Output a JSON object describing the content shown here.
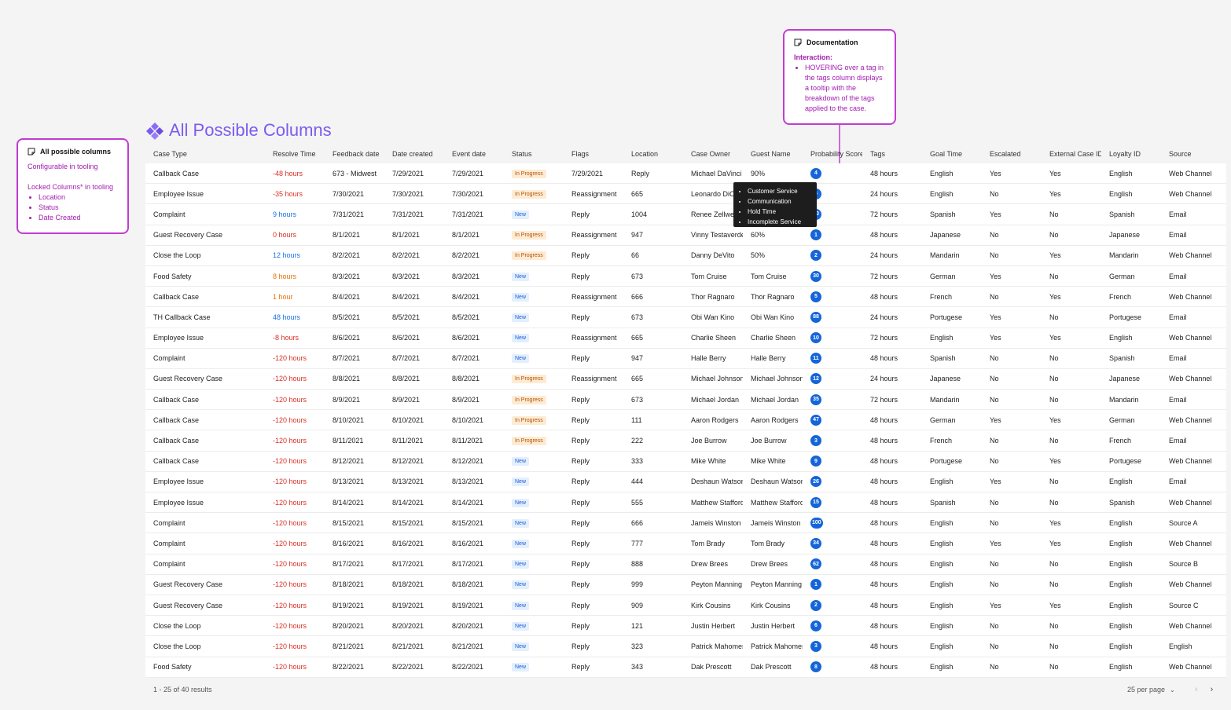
{
  "note_left": {
    "title": "All possible columns",
    "line1": "Configurable in tooling",
    "line2": "Locked Columns* in tooling",
    "items": [
      "Location",
      "Status",
      "Date Created"
    ]
  },
  "note_right": {
    "title": "Documentation",
    "label": "Interaction:",
    "text": "HOVERING over a tag in the tags column displays a tooltip with the breakdown of the tags applied to the case."
  },
  "page_title": "All Possible Columns",
  "columns": [
    "Case Type",
    "Resolve Time",
    "Feedback date",
    "Date created",
    "Event date",
    "Status",
    "Flags",
    "Location",
    "Case Owner",
    "Guest Name",
    "Probability Score",
    "Tags",
    "Goal Time",
    "Escalated",
    "External Case ID",
    "Loyalty ID",
    "Source"
  ],
  "rows": [
    {
      "case_type": "Callback Case",
      "resolve": "-48 hours",
      "rc": "red",
      "feedback": "673 - Midwest",
      "created": "7/29/2021",
      "event": "7/29/2021",
      "status": "In Progress",
      "flags": "7/29/2021",
      "location": "Reply",
      "owner": "Michael DaVinci",
      "guest": "90%",
      "prob": "4",
      "tags": "48 hours",
      "goal": "English",
      "esc": "Yes",
      "ext": "Yes",
      "loyalty": "English",
      "source": "Web Channel"
    },
    {
      "case_type": "Employee Issue",
      "resolve": "-35 hours",
      "rc": "red",
      "feedback": "7/30/2021",
      "created": "7/30/2021",
      "event": "7/30/2021",
      "status": "In Progress",
      "flags": "Reassignment",
      "location": "665",
      "owner": "Leonardo DiCaprio",
      "guest": "",
      "prob": "6",
      "tags": "24 hours",
      "goal": "English",
      "esc": "No",
      "ext": "Yes",
      "loyalty": "English",
      "source": "Web Channel"
    },
    {
      "case_type": "Complaint",
      "resolve": "9 hours",
      "rc": "blue",
      "feedback": "7/31/2021",
      "created": "7/31/2021",
      "event": "7/31/2021",
      "status": "New",
      "flags": "Reply",
      "location": "1004",
      "owner": "Renee Zellweger",
      "guest": "",
      "prob": "20",
      "tags": "72 hours",
      "goal": "Spanish",
      "esc": "Yes",
      "ext": "No",
      "loyalty": "Spanish",
      "source": "Email"
    },
    {
      "case_type": "Guest Recovery Case",
      "resolve": "0 hours",
      "rc": "red",
      "feedback": "8/1/2021",
      "created": "8/1/2021",
      "event": "8/1/2021",
      "status": "In Progress",
      "flags": "Reassignment",
      "location": "947",
      "owner": "Vinny Testaverde",
      "guest": "60%",
      "prob": "1",
      "tags": "48 hours",
      "goal": "Japanese",
      "esc": "No",
      "ext": "No",
      "loyalty": "Japanese",
      "source": "Email"
    },
    {
      "case_type": "Close the Loop",
      "resolve": "12 hours",
      "rc": "blue",
      "feedback": "8/2/2021",
      "created": "8/2/2021",
      "event": "8/2/2021",
      "status": "In Progress",
      "flags": "Reply",
      "location": "66",
      "owner": "Danny DeVito",
      "guest": "50%",
      "prob": "2",
      "tags": "24 hours",
      "goal": "Mandarin",
      "esc": "No",
      "ext": "Yes",
      "loyalty": "Mandarin",
      "source": "Web Channel"
    },
    {
      "case_type": "Food Safety",
      "resolve": "8 hours",
      "rc": "orange",
      "feedback": "8/3/2021",
      "created": "8/3/2021",
      "event": "8/3/2021",
      "status": "New",
      "flags": "Reply",
      "location": "673",
      "owner": "Tom Cruise",
      "guest": "Tom Cruise",
      "prob": "30",
      "tags": "72 hours",
      "goal": "German",
      "esc": "Yes",
      "ext": "No",
      "loyalty": "German",
      "source": "Email"
    },
    {
      "case_type": "Callback Case",
      "resolve": "1 hour",
      "rc": "orange",
      "feedback": "8/4/2021",
      "created": "8/4/2021",
      "event": "8/4/2021",
      "status": "New",
      "flags": "Reassignment",
      "location": "666",
      "owner": "Thor Ragnaro",
      "guest": "Thor Ragnaro",
      "prob": "5",
      "tags": "48 hours",
      "goal": "French",
      "esc": "No",
      "ext": "Yes",
      "loyalty": "French",
      "source": "Web Channel"
    },
    {
      "case_type": "TH Callback Case",
      "resolve": "48 hours",
      "rc": "blue",
      "feedback": "8/5/2021",
      "created": "8/5/2021",
      "event": "8/5/2021",
      "status": "New",
      "flags": "Reply",
      "location": "673",
      "owner": "Obi Wan Kino",
      "guest": "Obi Wan Kino",
      "prob": "88",
      "tags": "24 hours",
      "goal": "Portugese",
      "esc": "Yes",
      "ext": "No",
      "loyalty": "Portugese",
      "source": "Email"
    },
    {
      "case_type": "Employee Issue",
      "resolve": "-8 hours",
      "rc": "red",
      "feedback": "8/6/2021",
      "created": "8/6/2021",
      "event": "8/6/2021",
      "status": "New",
      "flags": "Reassignment",
      "location": "665",
      "owner": "Charlie Sheen",
      "guest": "Charlie Sheen",
      "prob": "10",
      "tags": "72 hours",
      "goal": "English",
      "esc": "Yes",
      "ext": "Yes",
      "loyalty": "English",
      "source": "Web Channel"
    },
    {
      "case_type": "Complaint",
      "resolve": "-120 hours",
      "rc": "red",
      "feedback": "8/7/2021",
      "created": "8/7/2021",
      "event": "8/7/2021",
      "status": "New",
      "flags": "Reply",
      "location": "947",
      "owner": "Halle Berry",
      "guest": "Halle Berry",
      "prob": "11",
      "tags": "48 hours",
      "goal": "Spanish",
      "esc": "No",
      "ext": "No",
      "loyalty": "Spanish",
      "source": "Email"
    },
    {
      "case_type": "Guest Recovery Case",
      "resolve": "-120 hours",
      "rc": "red",
      "feedback": "8/8/2021",
      "created": "8/8/2021",
      "event": "8/8/2021",
      "status": "In Progress",
      "flags": "Reassignment",
      "location": "665",
      "owner": "Michael Johnson",
      "guest": "Michael Johnson",
      "prob": "12",
      "tags": "24 hours",
      "goal": "Japanese",
      "esc": "No",
      "ext": "No",
      "loyalty": "Japanese",
      "source": "Web Channel"
    },
    {
      "case_type": "Callback Case",
      "resolve": "-120 hours",
      "rc": "red",
      "feedback": "8/9/2021",
      "created": "8/9/2021",
      "event": "8/9/2021",
      "status": "In Progress",
      "flags": "Reply",
      "location": "673",
      "owner": "Michael Jordan",
      "guest": "Michael Jordan",
      "prob": "35",
      "tags": "72 hours",
      "goal": "Mandarin",
      "esc": "No",
      "ext": "No",
      "loyalty": "Mandarin",
      "source": "Email"
    },
    {
      "case_type": "Callback Case",
      "resolve": "-120 hours",
      "rc": "red",
      "feedback": "8/10/2021",
      "created": "8/10/2021",
      "event": "8/10/2021",
      "status": "In Progress",
      "flags": "Reply",
      "location": "111",
      "owner": "Aaron Rodgers",
      "guest": "Aaron Rodgers",
      "prob": "47",
      "tags": "48 hours",
      "goal": "German",
      "esc": "Yes",
      "ext": "Yes",
      "loyalty": "German",
      "source": "Web Channel"
    },
    {
      "case_type": "Callback Case",
      "resolve": "-120 hours",
      "rc": "red",
      "feedback": "8/11/2021",
      "created": "8/11/2021",
      "event": "8/11/2021",
      "status": "In Progress",
      "flags": "Reply",
      "location": "222",
      "owner": "Joe Burrow",
      "guest": "Joe Burrow",
      "prob": "3",
      "tags": "48 hours",
      "goal": "French",
      "esc": "No",
      "ext": "No",
      "loyalty": "French",
      "source": "Email"
    },
    {
      "case_type": "Callback Case",
      "resolve": "-120 hours",
      "rc": "red",
      "feedback": "8/12/2021",
      "created": "8/12/2021",
      "event": "8/12/2021",
      "status": "New",
      "flags": "Reply",
      "location": "333",
      "owner": "Mike White",
      "guest": "Mike White",
      "prob": "9",
      "tags": "48 hours",
      "goal": "Portugese",
      "esc": "No",
      "ext": "Yes",
      "loyalty": "Portugese",
      "source": "Web Channel"
    },
    {
      "case_type": "Employee Issue",
      "resolve": "-120 hours",
      "rc": "red",
      "feedback": "8/13/2021",
      "created": "8/13/2021",
      "event": "8/13/2021",
      "status": "New",
      "flags": "Reply",
      "location": "444",
      "owner": "Deshaun Watson",
      "guest": "Deshaun Watson",
      "prob": "26",
      "tags": "48 hours",
      "goal": "English",
      "esc": "Yes",
      "ext": "No",
      "loyalty": "English",
      "source": "Email"
    },
    {
      "case_type": "Employee Issue",
      "resolve": "-120 hours",
      "rc": "red",
      "feedback": "8/14/2021",
      "created": "8/14/2021",
      "event": "8/14/2021",
      "status": "New",
      "flags": "Reply",
      "location": "555",
      "owner": "Matthew Stafford",
      "guest": "Matthew Stafford",
      "prob": "15",
      "tags": "48 hours",
      "goal": "Spanish",
      "esc": "No",
      "ext": "No",
      "loyalty": "Spanish",
      "source": "Web Channel"
    },
    {
      "case_type": "Complaint",
      "resolve": "-120 hours",
      "rc": "red",
      "feedback": "8/15/2021",
      "created": "8/15/2021",
      "event": "8/15/2021",
      "status": "New",
      "flags": "Reply",
      "location": "666",
      "owner": "Jameis Winston",
      "guest": "Jameis Winston",
      "prob": "100",
      "tags": "48 hours",
      "goal": "English",
      "esc": "No",
      "ext": "Yes",
      "loyalty": "English",
      "source": "Source A"
    },
    {
      "case_type": "Complaint",
      "resolve": "-120 hours",
      "rc": "red",
      "feedback": "8/16/2021",
      "created": "8/16/2021",
      "event": "8/16/2021",
      "status": "New",
      "flags": "Reply",
      "location": "777",
      "owner": "Tom Brady",
      "guest": "Tom Brady",
      "prob": "34",
      "tags": "48 hours",
      "goal": "English",
      "esc": "Yes",
      "ext": "Yes",
      "loyalty": "English",
      "source": "Web Channel"
    },
    {
      "case_type": "Complaint",
      "resolve": "-120 hours",
      "rc": "red",
      "feedback": "8/17/2021",
      "created": "8/17/2021",
      "event": "8/17/2021",
      "status": "New",
      "flags": "Reply",
      "location": "888",
      "owner": "Drew Brees",
      "guest": "Drew Brees",
      "prob": "62",
      "tags": "48 hours",
      "goal": "English",
      "esc": "No",
      "ext": "No",
      "loyalty": "English",
      "source": "Source B"
    },
    {
      "case_type": "Guest Recovery Case",
      "resolve": "-120 hours",
      "rc": "red",
      "feedback": "8/18/2021",
      "created": "8/18/2021",
      "event": "8/18/2021",
      "status": "New",
      "flags": "Reply",
      "location": "999",
      "owner": "Peyton Manning",
      "guest": "Peyton Manning",
      "prob": "1",
      "tags": "48 hours",
      "goal": "English",
      "esc": "No",
      "ext": "No",
      "loyalty": "English",
      "source": "Web Channel"
    },
    {
      "case_type": "Guest Recovery Case",
      "resolve": "-120 hours",
      "rc": "red",
      "feedback": "8/19/2021",
      "created": "8/19/2021",
      "event": "8/19/2021",
      "status": "New",
      "flags": "Reply",
      "location": "909",
      "owner": "Kirk Cousins",
      "guest": "Kirk Cousins",
      "prob": "2",
      "tags": "48 hours",
      "goal": "English",
      "esc": "Yes",
      "ext": "Yes",
      "loyalty": "English",
      "source": "Source C"
    },
    {
      "case_type": "Close the Loop",
      "resolve": "-120 hours",
      "rc": "red",
      "feedback": "8/20/2021",
      "created": "8/20/2021",
      "event": "8/20/2021",
      "status": "New",
      "flags": "Reply",
      "location": "121",
      "owner": "Justin Herbert",
      "guest": "Justin Herbert",
      "prob": "6",
      "tags": "48 hours",
      "goal": "English",
      "esc": "No",
      "ext": "No",
      "loyalty": "English",
      "source": "Web Channel"
    },
    {
      "case_type": "Close the Loop",
      "resolve": "-120 hours",
      "rc": "red",
      "feedback": "8/21/2021",
      "created": "8/21/2021",
      "event": "8/21/2021",
      "status": "New",
      "flags": "Reply",
      "location": "323",
      "owner": "Patrick Mahomes",
      "guest": "Patrick Mahomes",
      "prob": "3",
      "tags": "48 hours",
      "goal": "English",
      "esc": "No",
      "ext": "No",
      "loyalty": "English",
      "source": "English"
    },
    {
      "case_type": "Food Safety",
      "resolve": "-120 hours",
      "rc": "red",
      "feedback": "8/22/2021",
      "created": "8/22/2021",
      "event": "8/22/2021",
      "status": "New",
      "flags": "Reply",
      "location": "343",
      "owner": "Dak Prescott",
      "guest": "Dak Prescott",
      "prob": "8",
      "tags": "48 hours",
      "goal": "English",
      "esc": "No",
      "ext": "No",
      "loyalty": "English",
      "source": "Web Channel"
    }
  ],
  "tooltip": {
    "items": [
      "Customer Service",
      "Communication",
      "Hold Time",
      "Incomplete Service"
    ]
  },
  "footer": {
    "results": "1 - 25 of 40 results",
    "per_page": "25 per page"
  },
  "colors": {
    "accent": "#7b5cf0",
    "note_border": "#c23bd4",
    "badge_blue": "#1565d8"
  }
}
